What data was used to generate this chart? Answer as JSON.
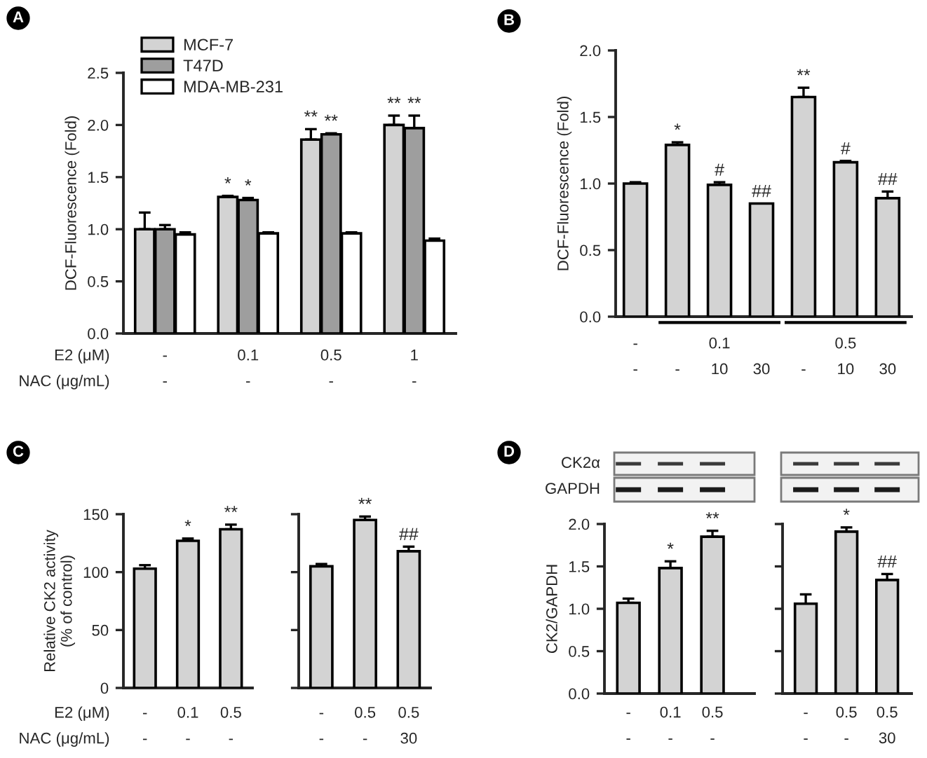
{
  "chart_data": [
    {
      "type": "bar",
      "title": "A",
      "ylabel": "DCF-Fluorescence (Fold)",
      "xlabel": "E2 (μM)\nNAC (μg/mL)",
      "categories": [
        "-\n-",
        "0.1\n-",
        "0.5\n-",
        "1\n-"
      ],
      "ylim": [
        0,
        2.5
      ],
      "yticks": [
        {
          "value": 0,
          "label": "0.0"
        },
        0.5,
        {
          "value": 1,
          "label": "1.0"
        },
        1.5,
        {
          "value": 2,
          "label": "2.0"
        },
        2.5
      ],
      "legend": "top left",
      "series": [
        {
          "name": "MCF-7",
          "color": "#d3d3d3",
          "values": [
            1.0,
            1.31,
            1.86,
            2.0
          ],
          "errors": [
            [
              1.0,
              1.16
            ],
            [
              1.31,
              1.32
            ],
            [
              1.86,
              1.96
            ],
            [
              2.0,
              2.09
            ]
          ],
          "value_labels": [
            null,
            "*",
            "**",
            "**"
          ]
        },
        {
          "name": "T47D",
          "color": "#9e9e9e",
          "values": [
            1.0,
            1.28,
            1.91,
            1.97
          ],
          "errors": [
            [
              1.0,
              1.04
            ],
            [
              1.28,
              1.3
            ],
            [
              1.91,
              1.92
            ],
            [
              1.97,
              2.09
            ]
          ],
          "value_labels": [
            null,
            "*",
            "**",
            "**"
          ]
        },
        {
          "name": "MDA-MB-231",
          "color": "#ffffff",
          "values": [
            0.95,
            0.96,
            0.96,
            0.89
          ],
          "errors": [
            [
              0.95,
              0.97
            ],
            [
              0.96,
              0.97
            ],
            [
              0.96,
              0.97
            ],
            [
              0.89,
              0.91
            ]
          ]
        }
      ]
    },
    {
      "type": "bar",
      "title": "B",
      "ylabel": "DCF-Fluorescence (Fold)",
      "categories": [
        "-\n-",
        "\n-",
        "0.1\n10",
        "\n30",
        "\n-",
        "0.5\n10",
        "\n30"
      ],
      "ylim": [
        0,
        2.0
      ],
      "yticks": [
        {
          "value": 0,
          "label": "0.0"
        },
        0.5,
        {
          "value": 1,
          "label": "1.0"
        },
        1.5,
        {
          "value": 2,
          "label": "2.0"
        }
      ],
      "color": "#d3d3d3",
      "values": [
        1.0,
        1.29,
        0.99,
        0.85,
        1.65,
        1.16,
        0.89
      ],
      "errors": [
        [
          1.0,
          1.01
        ],
        [
          1.29,
          1.31
        ],
        [
          0.99,
          1.01
        ],
        null,
        [
          1.65,
          1.72
        ],
        [
          1.16,
          1.17
        ],
        [
          0.89,
          0.94
        ]
      ],
      "value_labels": [
        null,
        "*",
        "#",
        "##",
        "**",
        "#",
        "##"
      ]
    },
    {
      "type": "bar",
      "title": "C",
      "ylabel": "Relative CK2 activity\n(% of control)",
      "xlabel": "E2 (μM)\nNAC (μg/mL)",
      "categories": [
        "-\n-",
        "0.1\n-",
        "0.5\n-"
      ],
      "ylim": [
        0,
        150
      ],
      "yticks": [
        0,
        50,
        100,
        150
      ],
      "color": "#d3d3d3",
      "values": [
        103,
        127,
        137
      ],
      "errors": [
        [
          103,
          106
        ],
        [
          127,
          129
        ],
        [
          137,
          141
        ]
      ],
      "value_labels": [
        null,
        "*",
        "**"
      ]
    },
    {
      "type": "bar",
      "categories": [
        "-\n-",
        "0.5\n-",
        "0.5\n30"
      ],
      "ylim": [
        0,
        150
      ],
      "yticks": [
        {
          "value": 0,
          "label": null
        },
        {
          "value": 50,
          "label": null
        },
        {
          "value": 100,
          "label": null
        },
        {
          "value": 150,
          "label": null
        }
      ],
      "tick_labels": "x",
      "color": "#d3d3d3",
      "values": [
        105,
        145,
        118
      ],
      "errors": [
        [
          105,
          107
        ],
        [
          145,
          148
        ],
        [
          118,
          122
        ]
      ],
      "value_labels": [
        null,
        "**",
        "##"
      ]
    },
    {
      "type": "bar",
      "title": "D",
      "ylabel": "CK2/GAPDH",
      "annotations": [
        "CK2α",
        "GAPDH"
      ],
      "categories": [
        "-\n-",
        "0.1\n-",
        "0.5\n-"
      ],
      "ylim": [
        0,
        2.0
      ],
      "yticks": [
        {
          "value": 0,
          "label": "0.0"
        },
        0.5,
        {
          "value": 1,
          "label": "1.0"
        },
        1.5,
        {
          "value": 2,
          "label": "2.0"
        }
      ],
      "color": "#d3d3d3",
      "values": [
        1.07,
        1.48,
        1.85
      ],
      "errors": [
        [
          1.07,
          1.12
        ],
        [
          1.48,
          1.56
        ],
        [
          1.85,
          1.92
        ]
      ],
      "value_labels": [
        null,
        "*",
        "**"
      ]
    },
    {
      "type": "bar",
      "categories": [
        "-\n-",
        "0.5\n-",
        "0.5\n30"
      ],
      "ylim": [
        0,
        2.0
      ],
      "yticks": [
        {
          "value": 0,
          "label": null
        },
        {
          "value": 0.5,
          "label": null
        },
        {
          "value": 1,
          "label": null
        },
        {
          "value": 1.5,
          "label": null
        },
        {
          "value": 2,
          "label": null
        }
      ],
      "tick_labels": "x",
      "color": "#d3d3d3",
      "values": [
        1.06,
        1.91,
        1.34
      ],
      "errors": [
        [
          1.06,
          1.17
        ],
        [
          1.91,
          1.96
        ],
        [
          1.34,
          1.41
        ]
      ],
      "value_labels": [
        null,
        "*",
        "##"
      ]
    }
  ]
}
